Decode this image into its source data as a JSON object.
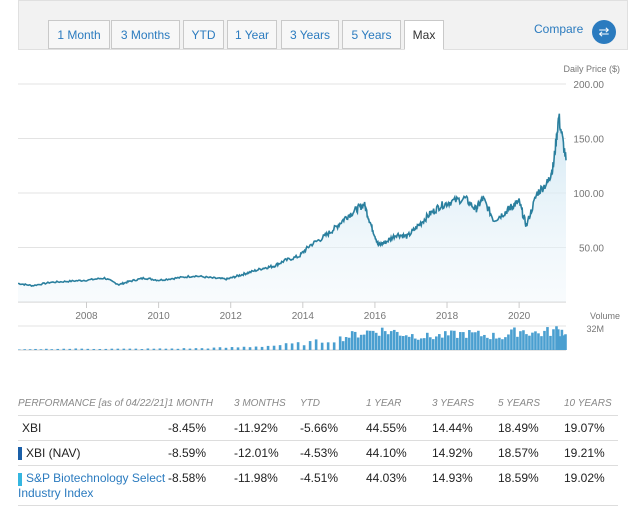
{
  "tabs": [
    "1 Month",
    "3 Months",
    "YTD",
    "1 Year",
    "3 Years",
    "5 Years",
    "Max"
  ],
  "active_tab": "Max",
  "compare_label": "Compare",
  "compare_icon": "swap-arrows-icon",
  "colors": {
    "line": "#2a7f9e",
    "volume": "#4a9fd0",
    "accent": "#2b7bbf"
  },
  "chart_data": {
    "type": "line",
    "ylabel": "Daily Price ($)",
    "y_ticks": [
      "200.00",
      "150.00",
      "100.00",
      "50.00"
    ],
    "x_ticks": [
      "2008",
      "2010",
      "2012",
      "2014",
      "2016",
      "2018",
      "2020"
    ],
    "ylim": [
      0,
      200
    ],
    "xlim": [
      2006.1,
      2021.3
    ],
    "grid": true,
    "series": [
      {
        "x": [
          2006.1,
          2006.5,
          2007.0,
          2007.5,
          2008.0,
          2008.5,
          2008.9,
          2009.2,
          2009.6,
          2010.0,
          2010.5,
          2011.0,
          2011.5,
          2011.9,
          2012.2,
          2012.5,
          2012.9,
          2013.2,
          2013.5,
          2013.9,
          2014.2,
          2014.6,
          2014.9,
          2015.2,
          2015.5,
          2015.7,
          2015.9,
          2016.1,
          2016.3,
          2016.6,
          2016.9,
          2017.2,
          2017.5,
          2017.8,
          2018.1,
          2018.5,
          2018.8,
          2019.0,
          2019.3,
          2019.6,
          2019.8,
          2020.0,
          2020.2,
          2020.5,
          2020.8,
          2020.95,
          2021.1,
          2021.3
        ],
        "y": [
          17,
          15,
          18,
          19,
          20,
          22,
          16,
          19,
          22,
          20,
          22,
          24,
          22,
          21,
          24,
          27,
          31,
          33,
          38,
          42,
          52,
          60,
          68,
          78,
          85,
          90,
          70,
          52,
          55,
          62,
          60,
          70,
          80,
          88,
          92,
          95,
          85,
          95,
          75,
          82,
          88,
          92,
          70,
          100,
          110,
          125,
          170,
          130
        ]
      }
    ],
    "volume": {
      "label": "Volume",
      "max_label": "32M",
      "x": [
        2006.1,
        2007.0,
        2008.0,
        2009.0,
        2010.0,
        2011.0,
        2012.0,
        2013.0,
        2014.0,
        2015.0,
        2015.5,
        2016.0,
        2016.5,
        2017.0,
        2017.5,
        2018.0,
        2018.5,
        2019.0,
        2019.5,
        2020.0,
        2020.5,
        2021.0,
        2021.3
      ],
      "y": [
        0.3,
        0.7,
        0.8,
        0.7,
        0.8,
        1.0,
        1.5,
        2.5,
        4,
        7,
        10,
        12,
        11,
        9,
        8,
        9,
        10,
        9,
        8,
        12,
        10,
        12,
        11
      ]
    }
  },
  "performance": {
    "headers": [
      "PERFORMANCE [as of 04/22/21]",
      "1 MONTH",
      "3 MONTHS",
      "YTD",
      "1 YEAR",
      "3 YEARS",
      "5 YEARS",
      "10 YEARS"
    ],
    "rows": [
      {
        "name": "XBI",
        "marker": "",
        "values": [
          "-8.45%",
          "-11.92%",
          "-5.66%",
          "44.55%",
          "14.44%",
          "18.49%",
          "19.07%"
        ]
      },
      {
        "name": "XBI (NAV)",
        "marker": "#1a5fa8",
        "values": [
          "-8.59%",
          "-12.01%",
          "-4.53%",
          "44.10%",
          "14.92%",
          "18.57%",
          "19.21%"
        ]
      },
      {
        "name": "S&P Biotechnology Select Industry Index",
        "marker": "#35b6e0",
        "link": true,
        "values": [
          "-8.58%",
          "-11.98%",
          "-4.51%",
          "44.03%",
          "14.93%",
          "18.59%",
          "19.02%"
        ]
      }
    ]
  }
}
